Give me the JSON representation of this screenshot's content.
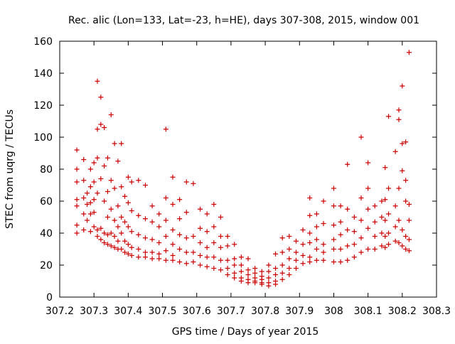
{
  "chart_data": {
    "type": "scatter",
    "title": "Rec. alic (Lon=133, Lat=-23, h=HE), days 307-308, 2015, window 001",
    "xlabel": "GPS time / Days of year 2015",
    "ylabel": "STEC from uqrg / TECUs",
    "xlim": [
      307.2,
      308.3
    ],
    "ylim": [
      0,
      160
    ],
    "x_ticks": [
      307.2,
      307.3,
      307.4,
      307.5,
      307.6,
      307.7,
      307.8,
      307.9,
      308,
      308.1,
      308.2,
      308.3
    ],
    "x_tick_labels": [
      "307.2",
      "307.3",
      "307.4",
      "307.5",
      "307.6",
      "307.7",
      "307.8",
      "307.9",
      "308",
      "308.1",
      "308.2",
      "308.3"
    ],
    "y_ticks": [
      0,
      20,
      40,
      60,
      80,
      100,
      120,
      140,
      160
    ],
    "y_tick_labels": [
      "0",
      "20",
      "40",
      "60",
      "80",
      "100",
      "120",
      "140",
      "160"
    ],
    "marker": "+",
    "marker_color": "#cc0000",
    "grid": false,
    "legend": "none",
    "series": [
      {
        "points": [
          [
            307.25,
            92
          ],
          [
            307.25,
            80
          ],
          [
            307.25,
            72
          ],
          [
            307.25,
            61
          ],
          [
            307.25,
            57
          ],
          [
            307.25,
            45
          ],
          [
            307.25,
            40
          ],
          [
            307.27,
            86
          ],
          [
            307.27,
            73
          ],
          [
            307.27,
            62
          ],
          [
            307.27,
            52
          ],
          [
            307.27,
            42
          ],
          [
            307.28,
            65
          ],
          [
            307.28,
            58
          ],
          [
            307.28,
            48
          ],
          [
            307.29,
            80
          ],
          [
            307.29,
            69
          ],
          [
            307.29,
            59
          ],
          [
            307.29,
            52
          ],
          [
            307.29,
            41
          ],
          [
            307.3,
            84
          ],
          [
            307.3,
            72
          ],
          [
            307.3,
            61
          ],
          [
            307.3,
            53
          ],
          [
            307.3,
            44
          ],
          [
            307.31,
            135
          ],
          [
            307.31,
            105
          ],
          [
            307.31,
            87
          ],
          [
            307.31,
            65
          ],
          [
            307.31,
            42
          ],
          [
            307.31,
            38
          ],
          [
            307.32,
            125
          ],
          [
            307.32,
            108
          ],
          [
            307.32,
            74
          ],
          [
            307.32,
            43
          ],
          [
            307.32,
            36
          ],
          [
            307.33,
            106
          ],
          [
            307.33,
            82
          ],
          [
            307.33,
            60
          ],
          [
            307.33,
            40
          ],
          [
            307.33,
            34
          ],
          [
            307.34,
            87
          ],
          [
            307.34,
            66
          ],
          [
            307.34,
            50
          ],
          [
            307.34,
            39
          ],
          [
            307.34,
            33
          ],
          [
            307.35,
            114
          ],
          [
            307.35,
            73
          ],
          [
            307.35,
            55
          ],
          [
            307.35,
            40
          ],
          [
            307.35,
            32
          ],
          [
            307.36,
            96
          ],
          [
            307.36,
            68
          ],
          [
            307.36,
            48
          ],
          [
            307.36,
            38
          ],
          [
            307.36,
            31
          ],
          [
            307.37,
            85
          ],
          [
            307.37,
            57
          ],
          [
            307.37,
            44
          ],
          [
            307.37,
            35
          ],
          [
            307.37,
            30
          ],
          [
            307.38,
            96
          ],
          [
            307.38,
            69
          ],
          [
            307.38,
            50
          ],
          [
            307.38,
            40
          ],
          [
            307.38,
            30
          ],
          [
            307.39,
            63
          ],
          [
            307.39,
            47
          ],
          [
            307.39,
            35
          ],
          [
            307.39,
            28
          ],
          [
            307.4,
            75
          ],
          [
            307.4,
            59
          ],
          [
            307.4,
            44
          ],
          [
            307.4,
            33
          ],
          [
            307.4,
            27
          ],
          [
            307.41,
            72
          ],
          [
            307.41,
            54
          ],
          [
            307.41,
            41
          ],
          [
            307.41,
            31
          ],
          [
            307.41,
            26
          ],
          [
            307.43,
            73
          ],
          [
            307.43,
            51
          ],
          [
            307.43,
            39
          ],
          [
            307.43,
            30
          ],
          [
            307.43,
            25
          ],
          [
            307.45,
            70
          ],
          [
            307.45,
            49
          ],
          [
            307.45,
            37
          ],
          [
            307.45,
            28
          ],
          [
            307.45,
            25
          ],
          [
            307.47,
            57
          ],
          [
            307.47,
            47
          ],
          [
            307.47,
            36
          ],
          [
            307.47,
            28
          ],
          [
            307.47,
            24
          ],
          [
            307.49,
            52
          ],
          [
            307.49,
            44
          ],
          [
            307.49,
            34
          ],
          [
            307.49,
            27
          ],
          [
            307.49,
            24
          ],
          [
            307.51,
            105
          ],
          [
            307.51,
            62
          ],
          [
            307.51,
            48
          ],
          [
            307.51,
            38
          ],
          [
            307.51,
            29
          ],
          [
            307.51,
            23
          ],
          [
            307.53,
            75
          ],
          [
            307.53,
            58
          ],
          [
            307.53,
            42
          ],
          [
            307.53,
            33
          ],
          [
            307.53,
            26
          ],
          [
            307.53,
            23
          ],
          [
            307.55,
            61
          ],
          [
            307.55,
            49
          ],
          [
            307.55,
            39
          ],
          [
            307.55,
            30
          ],
          [
            307.55,
            22
          ],
          [
            307.57,
            72
          ],
          [
            307.57,
            53
          ],
          [
            307.57,
            37
          ],
          [
            307.57,
            28
          ],
          [
            307.57,
            21
          ],
          [
            307.59,
            71
          ],
          [
            307.59,
            38
          ],
          [
            307.59,
            28
          ],
          [
            307.59,
            22
          ],
          [
            307.61,
            55
          ],
          [
            307.61,
            43
          ],
          [
            307.61,
            34
          ],
          [
            307.61,
            26
          ],
          [
            307.61,
            20
          ],
          [
            307.63,
            52
          ],
          [
            307.63,
            41
          ],
          [
            307.63,
            31
          ],
          [
            307.63,
            25
          ],
          [
            307.63,
            19
          ],
          [
            307.65,
            58
          ],
          [
            307.65,
            44
          ],
          [
            307.65,
            34
          ],
          [
            307.65,
            25
          ],
          [
            307.65,
            18
          ],
          [
            307.67,
            50
          ],
          [
            307.67,
            38
          ],
          [
            307.67,
            31
          ],
          [
            307.67,
            23
          ],
          [
            307.67,
            17
          ],
          [
            307.69,
            38
          ],
          [
            307.69,
            32
          ],
          [
            307.69,
            23
          ],
          [
            307.69,
            18
          ],
          [
            307.69,
            14
          ],
          [
            307.71,
            33
          ],
          [
            307.71,
            24
          ],
          [
            307.71,
            20
          ],
          [
            307.71,
            15
          ],
          [
            307.71,
            12
          ],
          [
            307.73,
            25
          ],
          [
            307.73,
            20
          ],
          [
            307.73,
            16
          ],
          [
            307.73,
            12
          ],
          [
            307.73,
            10
          ],
          [
            307.75,
            24
          ],
          [
            307.75,
            17
          ],
          [
            307.75,
            14
          ],
          [
            307.75,
            11
          ],
          [
            307.75,
            9
          ],
          [
            307.77,
            18
          ],
          [
            307.77,
            15
          ],
          [
            307.77,
            12
          ],
          [
            307.77,
            10
          ],
          [
            307.77,
            9
          ],
          [
            307.79,
            16
          ],
          [
            307.79,
            13
          ],
          [
            307.79,
            11
          ],
          [
            307.79,
            9
          ],
          [
            307.79,
            8
          ],
          [
            307.81,
            20
          ],
          [
            307.81,
            16
          ],
          [
            307.81,
            12
          ],
          [
            307.81,
            9
          ],
          [
            307.81,
            7
          ],
          [
            307.83,
            27
          ],
          [
            307.83,
            18
          ],
          [
            307.83,
            14
          ],
          [
            307.83,
            10
          ],
          [
            307.83,
            8
          ],
          [
            307.85,
            37
          ],
          [
            307.85,
            28
          ],
          [
            307.85,
            20
          ],
          [
            307.85,
            15
          ],
          [
            307.85,
            11
          ],
          [
            307.87,
            38
          ],
          [
            307.87,
            30
          ],
          [
            307.87,
            24
          ],
          [
            307.87,
            18
          ],
          [
            307.87,
            14
          ],
          [
            307.89,
            35
          ],
          [
            307.89,
            28
          ],
          [
            307.89,
            23
          ],
          [
            307.89,
            18
          ],
          [
            307.91,
            42
          ],
          [
            307.91,
            33
          ],
          [
            307.91,
            26
          ],
          [
            307.91,
            21
          ],
          [
            307.93,
            62
          ],
          [
            307.93,
            51
          ],
          [
            307.93,
            40
          ],
          [
            307.93,
            34
          ],
          [
            307.93,
            25
          ],
          [
            307.93,
            22
          ],
          [
            307.95,
            52
          ],
          [
            307.95,
            44
          ],
          [
            307.95,
            36
          ],
          [
            307.95,
            30
          ],
          [
            307.95,
            23
          ],
          [
            307.97,
            60
          ],
          [
            307.97,
            46
          ],
          [
            307.97,
            33
          ],
          [
            307.97,
            28
          ],
          [
            307.97,
            23
          ],
          [
            308.0,
            68
          ],
          [
            308.0,
            57
          ],
          [
            308.0,
            45
          ],
          [
            308.0,
            36
          ],
          [
            308.0,
            30
          ],
          [
            308.0,
            22
          ],
          [
            308.02,
            57
          ],
          [
            308.02,
            47
          ],
          [
            308.02,
            39
          ],
          [
            308.02,
            30
          ],
          [
            308.02,
            22
          ],
          [
            308.04,
            83
          ],
          [
            308.04,
            55
          ],
          [
            308.04,
            42
          ],
          [
            308.04,
            32
          ],
          [
            308.04,
            23
          ],
          [
            308.06,
            50
          ],
          [
            308.06,
            41
          ],
          [
            308.06,
            33
          ],
          [
            308.06,
            25
          ],
          [
            308.08,
            100
          ],
          [
            308.08,
            62
          ],
          [
            308.08,
            48
          ],
          [
            308.08,
            37
          ],
          [
            308.08,
            28
          ],
          [
            308.1,
            84
          ],
          [
            308.1,
            68
          ],
          [
            308.1,
            55
          ],
          [
            308.1,
            43
          ],
          [
            308.1,
            30
          ],
          [
            308.12,
            57
          ],
          [
            308.12,
            47
          ],
          [
            308.12,
            38
          ],
          [
            308.12,
            30
          ],
          [
            308.14,
            60
          ],
          [
            308.14,
            50
          ],
          [
            308.14,
            40
          ],
          [
            308.14,
            32
          ],
          [
            308.15,
            81
          ],
          [
            308.15,
            61
          ],
          [
            308.15,
            48
          ],
          [
            308.15,
            38
          ],
          [
            308.15,
            31
          ],
          [
            308.16,
            113
          ],
          [
            308.16,
            68
          ],
          [
            308.16,
            52
          ],
          [
            308.16,
            40
          ],
          [
            308.16,
            33
          ],
          [
            308.18,
            91
          ],
          [
            308.18,
            57
          ],
          [
            308.18,
            44
          ],
          [
            308.18,
            35
          ],
          [
            308.19,
            117
          ],
          [
            308.19,
            111
          ],
          [
            308.19,
            68
          ],
          [
            308.19,
            48
          ],
          [
            308.19,
            34
          ],
          [
            308.2,
            132
          ],
          [
            308.2,
            96
          ],
          [
            308.2,
            79
          ],
          [
            308.2,
            42
          ],
          [
            308.2,
            32
          ],
          [
            308.21,
            97
          ],
          [
            308.21,
            73
          ],
          [
            308.21,
            60
          ],
          [
            308.21,
            38
          ],
          [
            308.21,
            30
          ],
          [
            308.22,
            153
          ],
          [
            308.22,
            58
          ],
          [
            308.22,
            48
          ],
          [
            308.22,
            36
          ],
          [
            308.22,
            29
          ]
        ]
      }
    ]
  }
}
